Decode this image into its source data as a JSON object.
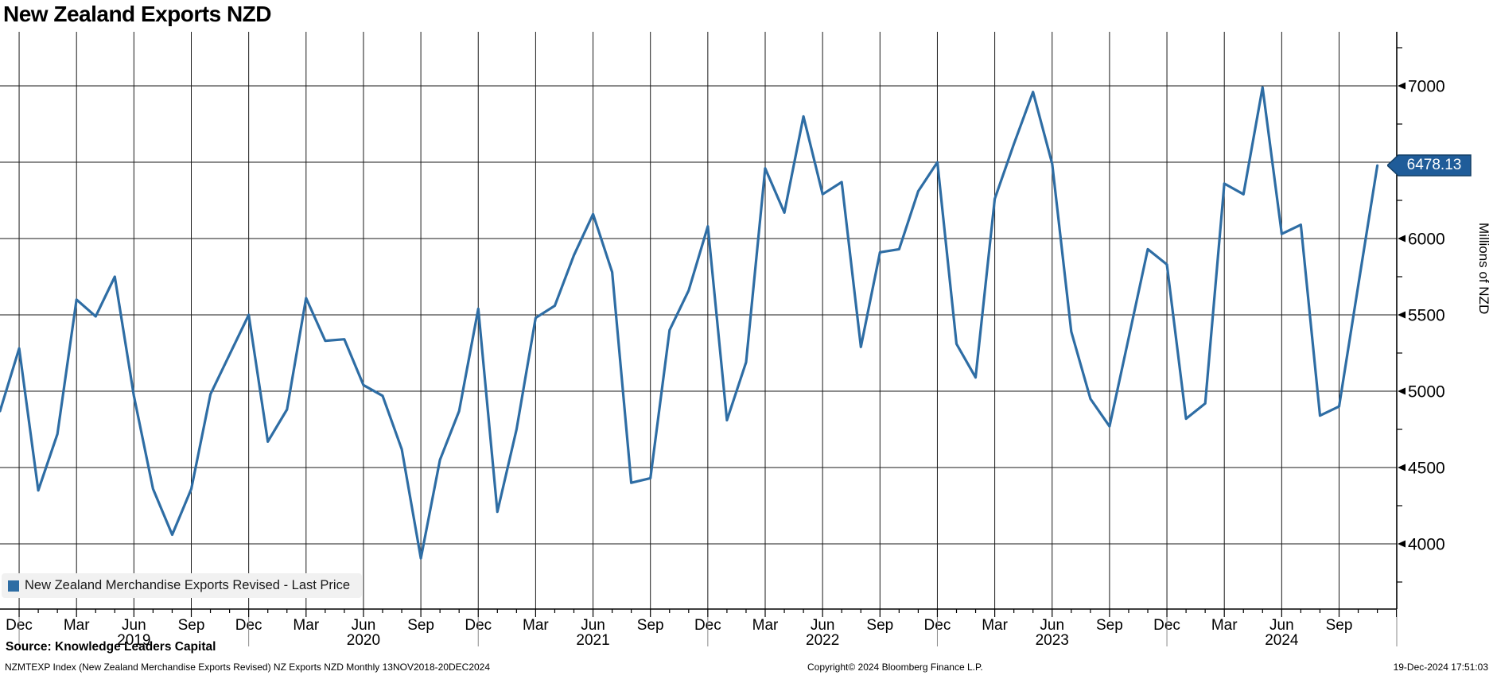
{
  "header": {
    "title": "New Zealand Exports NZD"
  },
  "chart_data": {
    "type": "line",
    "title": "New Zealand Exports NZD",
    "ylabel": "Millions of NZD",
    "xlabel": "",
    "grid": true,
    "legend_position": "bottom-left",
    "line_color": "#2e6da4",
    "series_name": "New Zealand Merchandise Exports Revised - Last Price",
    "x": [
      "Nov 2018",
      "Dec 2018",
      "Jan 2019",
      "Feb 2019",
      "Mar 2019",
      "Apr 2019",
      "May 2019",
      "Jun 2019",
      "Jul 2019",
      "Aug 2019",
      "Sep 2019",
      "Oct 2019",
      "Nov 2019",
      "Dec 2019",
      "Jan 2020",
      "Feb 2020",
      "Mar 2020",
      "Apr 2020",
      "May 2020",
      "Jun 2020",
      "Jul 2020",
      "Aug 2020",
      "Sep 2020",
      "Oct 2020",
      "Nov 2020",
      "Dec 2020",
      "Jan 2021",
      "Feb 2021",
      "Mar 2021",
      "Apr 2021",
      "May 2021",
      "Jun 2021",
      "Jul 2021",
      "Aug 2021",
      "Sep 2021",
      "Oct 2021",
      "Nov 2021",
      "Dec 2021",
      "Jan 2022",
      "Feb 2022",
      "Mar 2022",
      "Apr 2022",
      "May 2022",
      "Jun 2022",
      "Jul 2022",
      "Aug 2022",
      "Sep 2022",
      "Oct 2022",
      "Nov 2022",
      "Dec 2022",
      "Jan 2023",
      "Feb 2023",
      "Mar 2023",
      "Apr 2023",
      "May 2023",
      "Jun 2023",
      "Jul 2023",
      "Aug 2023",
      "Sep 2023",
      "Oct 2023",
      "Nov 2023",
      "Dec 2023",
      "Jan 2024",
      "Feb 2024",
      "Mar 2024",
      "Apr 2024",
      "May 2024",
      "Jun 2024",
      "Jul 2024",
      "Aug 2024",
      "Sep 2024",
      "Oct 2024",
      "Nov 2024"
    ],
    "values": [
      4870,
      5280,
      4350,
      4720,
      5600,
      5490,
      5750,
      4970,
      4360,
      4060,
      4360,
      4980,
      5240,
      5500,
      4670,
      4880,
      5610,
      5330,
      5340,
      5040,
      4970,
      4620,
      3905,
      4550,
      4870,
      5540,
      4210,
      4750,
      5480,
      5560,
      5890,
      6160,
      5780,
      4400,
      4430,
      5400,
      5660,
      6080,
      4810,
      5190,
      6460,
      6170,
      6800,
      6290,
      6370,
      5290,
      5910,
      5930,
      6310,
      6500,
      5310,
      5090,
      6260,
      6620,
      6960,
      6490,
      5390,
      4950,
      4770,
      5350,
      5930,
      5830,
      4820,
      4920,
      6360,
      6290,
      6990,
      6030,
      6090,
      4840,
      4900,
      5690,
      6478.13
    ],
    "last_price": 6478.13,
    "y_ticks": [
      4000,
      4500,
      5000,
      5500,
      6000,
      6500,
      7000
    ],
    "y_minor_ticks": [
      3750,
      4250,
      4750,
      5250,
      5750,
      6250,
      6750,
      7250
    ],
    "hidden_y_tick_label": 6500,
    "ylim": [
      3573,
      7354
    ],
    "x_quarter_labels": [
      "Dec",
      "Mar",
      "Jun",
      "Sep"
    ],
    "year_labels": [
      "2019",
      "2020",
      "2021",
      "2022",
      "2023",
      "2024"
    ],
    "date_range": "13NOV2018-20DEC2024"
  },
  "legend": {
    "label": "New Zealand Merchandise Exports Revised - Last Price",
    "marker_color": "#2e6da4"
  },
  "badge": {
    "value": "6478.13",
    "bg": "#1f5c99",
    "border": "#123f66"
  },
  "y_axis": {
    "title": "Millions of NZD"
  },
  "footer": {
    "source": "Source: Knowledge Leaders Capital",
    "meta": "NZMTEXP Index (New Zealand Merchandise Exports Revised) NZ Exports NZD  Monthly 13NOV2018-20DEC2024",
    "copyright": "Copyright© 2024 Bloomberg Finance L.P.",
    "datetime": "19-Dec-2024 17:51:03"
  }
}
